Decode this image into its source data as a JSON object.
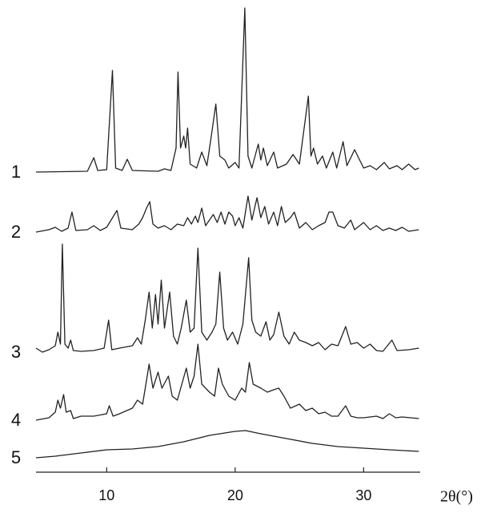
{
  "chart_data": {
    "type": "line",
    "x_label": "2θ(°)",
    "xlim": [
      4.5,
      34.4
    ],
    "xticks": [
      10,
      20,
      30
    ],
    "series": [
      {
        "name": "1",
        "color": "#222222",
        "x": [
          4.5,
          8.5,
          9.0,
          9.3,
          10.0,
          10.45,
          10.7,
          11.2,
          11.6,
          12.0,
          14.0,
          14.5,
          15.0,
          15.4,
          15.55,
          15.75,
          16.0,
          16.15,
          16.3,
          16.5,
          17.0,
          17.4,
          17.8,
          18.1,
          18.5,
          18.8,
          19.2,
          19.5,
          20.0,
          20.3,
          20.75,
          21.0,
          21.3,
          21.8,
          22.0,
          22.2,
          22.5,
          23.0,
          23.3,
          24.0,
          24.5,
          25.0,
          25.7,
          25.9,
          26.1,
          26.4,
          26.8,
          27.1,
          27.6,
          27.9,
          28.4,
          28.7,
          29.3,
          29.6,
          30.0,
          30.5,
          31.0,
          31.6,
          32.0,
          32.6,
          33.0,
          33.5,
          34.0,
          34.3
        ],
        "values": [
          0,
          1,
          18,
          2,
          3,
          127,
          5,
          2,
          16,
          2,
          1,
          4,
          2,
          30,
          125,
          30,
          45,
          30,
          55,
          10,
          5,
          25,
          8,
          40,
          85,
          20,
          15,
          5,
          12,
          5,
          205,
          20,
          5,
          35,
          15,
          30,
          8,
          25,
          5,
          10,
          22,
          10,
          95,
          20,
          30,
          10,
          20,
          5,
          25,
          5,
          38,
          8,
          28,
          18,
          5,
          8,
          3,
          12,
          4,
          8,
          3,
          10,
          3,
          5
        ]
      },
      {
        "name": "2",
        "color": "#222222",
        "x": [
          4.5,
          5.5,
          6.0,
          6.5,
          7.0,
          7.3,
          7.6,
          8.5,
          9.0,
          9.5,
          10.0,
          10.8,
          11.1,
          12.0,
          12.5,
          12.8,
          13.1,
          13.35,
          13.6,
          14.0,
          14.5,
          15.0,
          15.5,
          16.0,
          16.3,
          16.6,
          16.9,
          17.1,
          17.4,
          17.7,
          18.0,
          18.3,
          18.6,
          18.9,
          19.2,
          19.5,
          19.8,
          20.0,
          20.3,
          20.6,
          21.0,
          21.3,
          21.7,
          22.0,
          22.3,
          22.6,
          23.0,
          23.3,
          23.6,
          23.9,
          24.3,
          24.6,
          25.0,
          25.5,
          26.0,
          26.5,
          27.0,
          27.3,
          27.6,
          28.0,
          28.5,
          29.0,
          29.3,
          30.0,
          30.5,
          31.0,
          31.5,
          32.0,
          32.5,
          33.0,
          33.5,
          34.3
        ],
        "values": [
          0,
          3,
          6,
          1,
          5,
          25,
          2,
          3,
          8,
          2,
          6,
          27,
          5,
          3,
          10,
          18,
          30,
          38,
          10,
          5,
          8,
          3,
          10,
          8,
          18,
          10,
          20,
          12,
          30,
          8,
          15,
          22,
          12,
          25,
          10,
          25,
          20,
          8,
          18,
          5,
          45,
          15,
          43,
          18,
          32,
          10,
          25,
          8,
          32,
          12,
          18,
          25,
          5,
          12,
          3,
          8,
          12,
          25,
          25,
          8,
          5,
          15,
          3,
          12,
          3,
          8,
          2,
          5,
          2,
          6,
          1,
          3
        ]
      },
      {
        "name": "3",
        "color": "#222222",
        "x": [
          4.5,
          5.0,
          5.5,
          6.0,
          6.2,
          6.4,
          6.55,
          6.75,
          7.0,
          7.2,
          7.4,
          8.0,
          9.0,
          9.8,
          10.15,
          10.4,
          11.0,
          12.0,
          12.4,
          12.7,
          13.0,
          13.3,
          13.55,
          13.8,
          14.0,
          14.25,
          14.5,
          14.9,
          15.2,
          15.5,
          15.8,
          16.2,
          16.5,
          16.8,
          17.1,
          17.4,
          17.8,
          18.2,
          18.5,
          18.8,
          19.1,
          19.4,
          19.8,
          20.2,
          20.6,
          21.05,
          21.3,
          21.6,
          22.0,
          22.4,
          22.7,
          23.0,
          23.4,
          23.8,
          24.2,
          24.6,
          25.0,
          25.5,
          26.0,
          26.5,
          27.0,
          27.5,
          28.0,
          28.6,
          29.0,
          29.5,
          30.0,
          30.5,
          31.0,
          31.5,
          32.2,
          32.6,
          33.5,
          34.3
        ],
        "values": [
          5,
          0,
          3,
          8,
          25,
          10,
          135,
          10,
          5,
          15,
          2,
          1,
          2,
          5,
          40,
          3,
          5,
          8,
          18,
          10,
          40,
          75,
          30,
          72,
          35,
          90,
          30,
          75,
          20,
          10,
          30,
          65,
          25,
          30,
          130,
          25,
          15,
          25,
          35,
          100,
          30,
          15,
          25,
          10,
          35,
          118,
          40,
          25,
          20,
          38,
          15,
          22,
          50,
          20,
          10,
          25,
          15,
          12,
          8,
          12,
          3,
          10,
          8,
          32,
          10,
          12,
          5,
          10,
          2,
          1,
          15,
          2,
          3,
          5
        ]
      },
      {
        "name": "4",
        "color": "#222222",
        "x": [
          4.5,
          5.5,
          6.0,
          6.2,
          6.4,
          6.65,
          6.85,
          7.2,
          7.4,
          8.0,
          9.0,
          10.0,
          10.2,
          10.5,
          11.0,
          12.0,
          12.4,
          12.8,
          13.0,
          13.3,
          13.6,
          14.0,
          14.3,
          14.8,
          15.1,
          15.5,
          16.2,
          16.5,
          16.8,
          17.1,
          17.4,
          18.0,
          18.4,
          18.7,
          19.0,
          19.5,
          20.0,
          20.5,
          20.8,
          21.1,
          21.4,
          22.0,
          22.5,
          23.0,
          23.4,
          23.8,
          24.3,
          25.0,
          25.5,
          26.0,
          26.5,
          27.0,
          27.5,
          28.0,
          28.6,
          29.0,
          29.5,
          30.0,
          31.0,
          31.5,
          32.0,
          32.5,
          33.0,
          34.3
        ],
        "values": [
          0,
          3,
          10,
          25,
          15,
          32,
          10,
          12,
          2,
          5,
          5,
          8,
          18,
          5,
          8,
          15,
          25,
          20,
          40,
          70,
          40,
          60,
          40,
          55,
          30,
          25,
          65,
          40,
          55,
          95,
          45,
          35,
          30,
          65,
          45,
          30,
          25,
          40,
          35,
          72,
          45,
          40,
          35,
          38,
          40,
          30,
          15,
          20,
          12,
          15,
          8,
          10,
          5,
          5,
          18,
          5,
          3,
          3,
          5,
          2,
          8,
          3,
          4,
          2
        ]
      },
      {
        "name": "5",
        "color": "#222222",
        "x": [
          4.5,
          6,
          8,
          10,
          12,
          14,
          16,
          18,
          20,
          20.8,
          22,
          24,
          26,
          28,
          30,
          32,
          34.3
        ],
        "values": [
          0,
          2,
          6,
          10,
          11,
          14,
          20,
          28,
          33,
          34,
          30,
          24,
          18,
          14,
          12,
          10,
          8
        ]
      }
    ]
  }
}
